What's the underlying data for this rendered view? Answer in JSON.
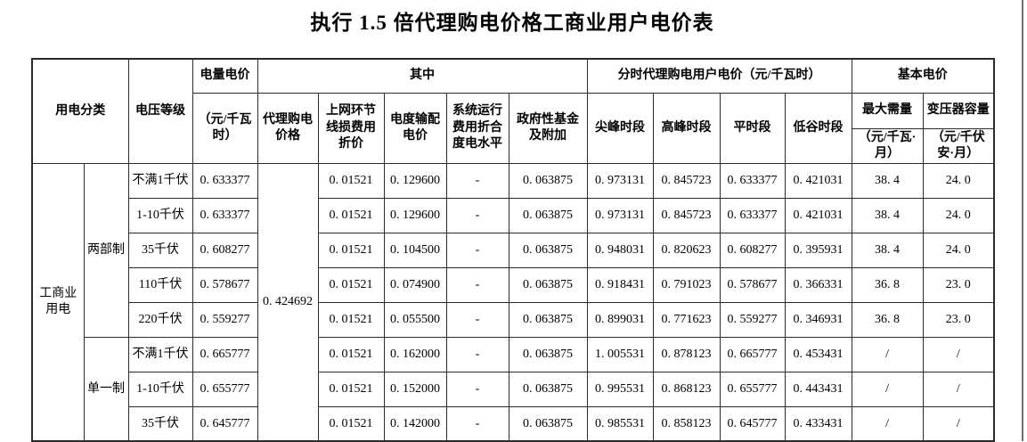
{
  "page": {
    "title": "执行 1.5 倍代理购电价格工商业用户电价表"
  },
  "table": {
    "header": {
      "usage_class": "用电分类",
      "voltage_level": "电压等级",
      "energy_price": "电量电价",
      "energy_price_unit": "（元/千瓦时）",
      "among_which": "其中",
      "agency_price": "代理购电价格",
      "grid_loss": "上网环节线损费用折价",
      "transmission": "电度输配电价",
      "system_ops": "系统运行费用折合度电水平",
      "gov_funds": "政府性基金及附加",
      "tou_price_group": "分时代理购电用户电价（元/千瓦时）",
      "sharp_peak": "尖峰时段",
      "peak": "高峰时段",
      "flat": "平时段",
      "valley": "低谷时段",
      "basic_price_group": "基本电价",
      "max_demand": "最大需量",
      "max_demand_unit": "（元/千瓦·月）",
      "transformer_capacity": "变压器容量",
      "transformer_capacity_unit": "（元/千伏安·月）"
    },
    "usage_category": "工商业用电",
    "agency_purchase_price": "0.424692",
    "groups": [
      {
        "pricing_system": "两部制",
        "rows": [
          {
            "voltage": "不满1千伏",
            "energy_price": "0.633377",
            "grid_loss": "0.01521",
            "transmission": "0.129600",
            "system_ops": "-",
            "gov_funds": "0.063875",
            "sharp_peak": "0.973131",
            "peak": "0.845723",
            "flat": "0.633377",
            "valley": "0.421031",
            "max_demand": "38.4",
            "transformer_capacity": "24.0"
          },
          {
            "voltage": "1-10千伏",
            "energy_price": "0.633377",
            "grid_loss": "0.01521",
            "transmission": "0.129600",
            "system_ops": "-",
            "gov_funds": "0.063875",
            "sharp_peak": "0.973131",
            "peak": "0.845723",
            "flat": "0.633377",
            "valley": "0.421031",
            "max_demand": "38.4",
            "transformer_capacity": "24.0"
          },
          {
            "voltage": "35千伏",
            "energy_price": "0.608277",
            "grid_loss": "0.01521",
            "transmission": "0.104500",
            "system_ops": "-",
            "gov_funds": "0.063875",
            "sharp_peak": "0.948031",
            "peak": "0.820623",
            "flat": "0.608277",
            "valley": "0.395931",
            "max_demand": "38.4",
            "transformer_capacity": "24.0"
          },
          {
            "voltage": "110千伏",
            "energy_price": "0.578677",
            "grid_loss": "0.01521",
            "transmission": "0.074900",
            "system_ops": "-",
            "gov_funds": "0.063875",
            "sharp_peak": "0.918431",
            "peak": "0.791023",
            "flat": "0.578677",
            "valley": "0.366331",
            "max_demand": "36.8",
            "transformer_capacity": "23.0"
          },
          {
            "voltage": "220千伏",
            "energy_price": "0.559277",
            "grid_loss": "0.01521",
            "transmission": "0.055500",
            "system_ops": "-",
            "gov_funds": "0.063875",
            "sharp_peak": "0.899031",
            "peak": "0.771623",
            "flat": "0.559277",
            "valley": "0.346931",
            "max_demand": "36.8",
            "transformer_capacity": "23.0"
          }
        ]
      },
      {
        "pricing_system": "单一制",
        "rows": [
          {
            "voltage": "不满1千伏",
            "energy_price": "0.665777",
            "grid_loss": "0.01521",
            "transmission": "0.162000",
            "system_ops": "-",
            "gov_funds": "0.063875",
            "sharp_peak": "1.005531",
            "peak": "0.878123",
            "flat": "0.665777",
            "valley": "0.453431",
            "max_demand": "/",
            "transformer_capacity": "/"
          },
          {
            "voltage": "1-10千伏",
            "energy_price": "0.655777",
            "grid_loss": "0.01521",
            "transmission": "0.152000",
            "system_ops": "-",
            "gov_funds": "0.063875",
            "sharp_peak": "0.995531",
            "peak": "0.868123",
            "flat": "0.655777",
            "valley": "0.443431",
            "max_demand": "/",
            "transformer_capacity": "/"
          },
          {
            "voltage": "35千伏",
            "energy_price": "0.645777",
            "grid_loss": "0.01521",
            "transmission": "0.142000",
            "system_ops": "-",
            "gov_funds": "0.063875",
            "sharp_peak": "0.985531",
            "peak": "0.858123",
            "flat": "0.645777",
            "valley": "0.433431",
            "max_demand": "/",
            "transformer_capacity": "/"
          }
        ]
      }
    ]
  }
}
